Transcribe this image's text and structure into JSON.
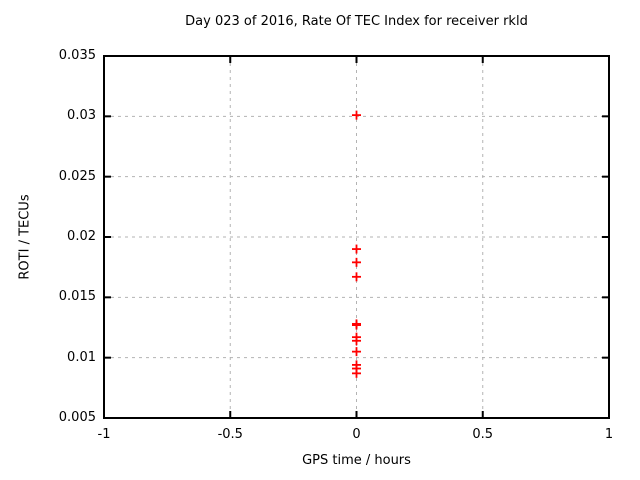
{
  "chart_data": {
    "type": "scatter",
    "title": "Day 023 of 2016, Rate Of TEC Index for receiver rkld",
    "xlabel": "GPS time / hours",
    "ylabel": "ROTI / TECUs",
    "xlim": [
      -1,
      1
    ],
    "ylim": [
      0.005,
      0.035
    ],
    "xticks": [
      -1,
      -0.5,
      0,
      0.5,
      1
    ],
    "xtick_labels": [
      "-1",
      "-0.5",
      "0",
      "0.5",
      "1"
    ],
    "yticks": [
      0.005,
      0.01,
      0.015,
      0.02,
      0.025,
      0.03,
      0.035
    ],
    "ytick_labels": [
      "0.005",
      "0.01",
      "0.015",
      "0.02",
      "0.025",
      "0.03",
      "0.035"
    ],
    "grid": true,
    "legend": false,
    "marker": "plus",
    "series": [
      {
        "x": [
          0,
          0,
          0,
          0,
          0,
          0,
          0,
          0,
          0,
          0,
          0,
          0
        ],
        "y": [
          0.0301,
          0.019,
          0.0179,
          0.0167,
          0.0128,
          0.0127,
          0.0117,
          0.0114,
          0.0105,
          0.0094,
          0.0091,
          0.0087
        ]
      }
    ]
  },
  "colors": {
    "marker": "#ff0000",
    "grid": "#b3b3b3",
    "border": "#000000",
    "text": "#000000",
    "background": "#ffffff"
  }
}
